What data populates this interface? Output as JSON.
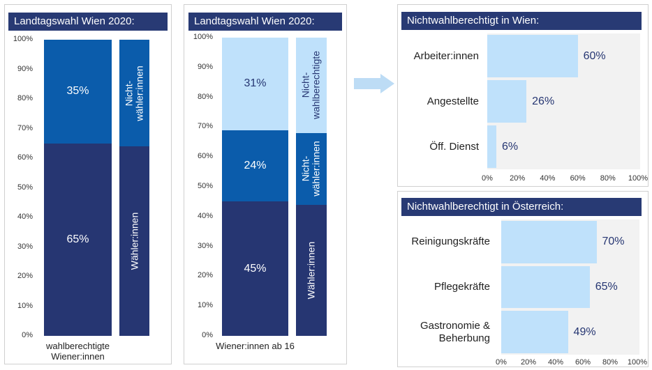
{
  "chart_data": [
    {
      "type": "bar",
      "orientation": "vertical",
      "stacked": true,
      "title": "Landtagswahl Wien 2020:",
      "categories": [
        "wahlberechtigte Wiener:innen",
        null
      ],
      "series": [
        {
          "name": "Wähler:innen",
          "color": "#263672",
          "values": [
            65,
            64
          ],
          "value_labels": [
            "65%",
            null
          ]
        },
        {
          "name": "Nicht-wähler:innen",
          "color": "#0b5cab",
          "values": [
            35,
            36
          ],
          "value_labels": [
            "35%",
            null
          ]
        }
      ],
      "ylim": [
        0,
        100
      ],
      "yticks": [
        {
          "value": 0,
          "label": "0%"
        },
        {
          "value": 10,
          "label": "10%"
        },
        {
          "value": 20,
          "label": "20%"
        },
        {
          "value": 30,
          "label": "30%"
        },
        {
          "value": 40,
          "label": "40%"
        },
        {
          "value": 50,
          "label": "50%"
        },
        {
          "value": 60,
          "label": "60%"
        },
        {
          "value": 70,
          "label": "70%"
        },
        {
          "value": 80,
          "label": "80%"
        },
        {
          "value": 90,
          "label": "90%"
        },
        {
          "value": 100,
          "label": "100%"
        }
      ]
    },
    {
      "type": "bar",
      "orientation": "vertical",
      "stacked": true,
      "title": "Landtagswahl Wien 2020:",
      "categories": [
        "Wiener:innen ab 16",
        null
      ],
      "series": [
        {
          "name": "Wähler:innen",
          "color": "#263672",
          "values": [
            45,
            44
          ],
          "value_labels": [
            "45%",
            null
          ]
        },
        {
          "name": "Nicht-wähler:innen",
          "color": "#0b5cab",
          "values": [
            24,
            24
          ],
          "value_labels": [
            "24%",
            null
          ]
        },
        {
          "name": "Nicht-wahlberechtigte",
          "color": "#bfe1fb",
          "values": [
            31,
            32
          ],
          "value_labels": [
            "31%",
            null
          ]
        }
      ],
      "ylim": [
        0,
        100
      ],
      "yticks": [
        {
          "value": 0,
          "label": "0%"
        },
        {
          "value": 10,
          "label": "10%"
        },
        {
          "value": 20,
          "label": "20%"
        },
        {
          "value": 30,
          "label": "30%"
        },
        {
          "value": 40,
          "label": "40%"
        },
        {
          "value": 50,
          "label": "50%"
        },
        {
          "value": 60,
          "label": "60%"
        },
        {
          "value": 70,
          "label": "70%"
        },
        {
          "value": 80,
          "label": "80%"
        },
        {
          "value": 90,
          "label": "90%"
        },
        {
          "value": 100,
          "label": "100%"
        }
      ]
    },
    {
      "type": "bar",
      "orientation": "horizontal",
      "title": "Nichtwahlberechtigt in Wien:",
      "categories": [
        "Arbeiter:innen",
        "Angestellte",
        "Öff. Dienst"
      ],
      "values": [
        60,
        26,
        6
      ],
      "value_labels": [
        "60%",
        "26%",
        "6%"
      ],
      "color": "#bfe1fb",
      "xlim": [
        0,
        100
      ],
      "xticks": [
        {
          "value": 0,
          "label": "0%"
        },
        {
          "value": 20,
          "label": "20%"
        },
        {
          "value": 40,
          "label": "40%"
        },
        {
          "value": 60,
          "label": "60%"
        },
        {
          "value": 80,
          "label": "80%"
        },
        {
          "value": 100,
          "label": "100%"
        }
      ]
    },
    {
      "type": "bar",
      "orientation": "horizontal",
      "title": "Nichtwahlberechtigt in Österreich:",
      "categories": [
        "Reinigungskräfte",
        "Pflegekräfte",
        "Gastronomie & Beherbung"
      ],
      "values": [
        70,
        65,
        49
      ],
      "value_labels": [
        "70%",
        "65%",
        "49%"
      ],
      "color": "#bfe1fb",
      "xlim": [
        0,
        100
      ],
      "xticks": [
        {
          "value": 0,
          "label": "0%"
        },
        {
          "value": 20,
          "label": "20%"
        },
        {
          "value": 40,
          "label": "40%"
        },
        {
          "value": 60,
          "label": "60%"
        },
        {
          "value": 80,
          "label": "80%"
        },
        {
          "value": 100,
          "label": "100%"
        }
      ]
    }
  ]
}
